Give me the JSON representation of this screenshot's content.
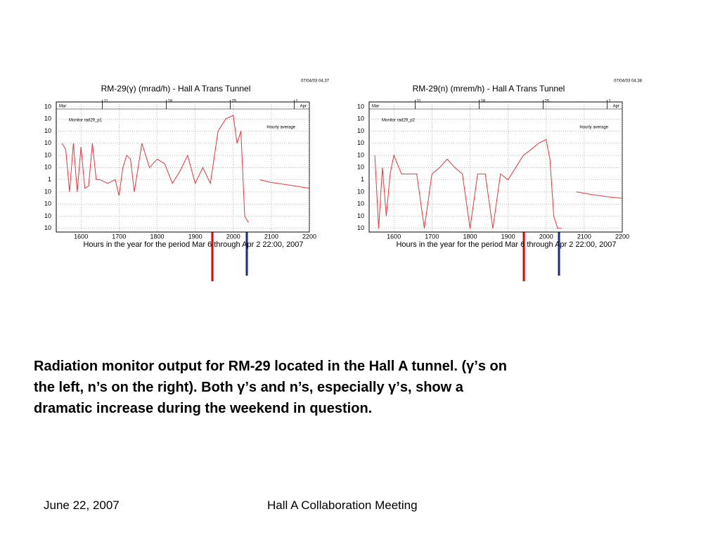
{
  "charts": [
    {
      "type": "line",
      "title": "RM-29(γ) (mrad/h) - Hall A Trans Tunnel",
      "timestamp": "07/04/03   04.37",
      "monitor_label": "Monitor rad29_p1",
      "x_label": "Hours in the year for the period Mar 6   through   Apr 2 22:00, 2007",
      "month_start": "Mar",
      "month_end": "Apr",
      "date_markers": [
        {
          "value": 1656,
          "label": "11"
        },
        {
          "value": 1824,
          "label": "18"
        },
        {
          "value": 1992,
          "label": "25"
        },
        {
          "value": 2160,
          "label": "1"
        }
      ],
      "log_y": true,
      "grid": true,
      "xlim": [
        1535,
        2200
      ],
      "xticks": [
        1600,
        1700,
        1800,
        1900,
        2000,
        2100,
        2200
      ],
      "ylim": [
        5e-05,
        2500000
      ],
      "yticks": [
        {
          "value": 1000000,
          "label": "10"
        },
        {
          "value": 100000,
          "label": "10"
        },
        {
          "value": 10000,
          "label": "10"
        },
        {
          "value": 1000,
          "label": "10"
        },
        {
          "value": 100,
          "label": "10"
        },
        {
          "value": 10,
          "label": "10"
        },
        1,
        {
          "value": 0.1,
          "label": "10"
        },
        {
          "value": 0.01,
          "label": "10"
        },
        {
          "value": 0.001,
          "label": "10"
        },
        {
          "value": 0.0001,
          "label": "10"
        }
      ],
      "series": [
        {
          "name": "Hourly average",
          "color": "#e8000b",
          "x": [
            1550,
            1560,
            1570,
            1580,
            1590,
            1600,
            1610,
            1620,
            1630,
            1640,
            1650,
            1670,
            1690,
            1700,
            1710,
            1720,
            1730,
            1740,
            1750,
            1760,
            1780,
            1800,
            1820,
            1840,
            1860,
            1880,
            1900,
            1920,
            1940,
            1960,
            1980,
            2000,
            2010,
            2020,
            2030,
            2040,
            2050,
            2070,
            2100,
            2150,
            2200
          ],
          "values": [
            1000,
            300,
            0.1,
            1000,
            0.1,
            500,
            0.2,
            0.3,
            1000,
            1,
            1,
            0.5,
            1,
            0.05,
            10,
            100,
            50,
            0.1,
            10,
            1000,
            10,
            50,
            20,
            0.5,
            5,
            100,
            0.5,
            10,
            0.5,
            10000,
            100000,
            200000,
            1000,
            10000,
            0.001,
            0.0003,
            null,
            1,
            0.6,
            0.35,
            0.2
          ]
        }
      ]
    },
    {
      "type": "line",
      "title": "RM-29(n) (mrem/h) - Hall A Trans Tunnel",
      "timestamp": "07/04/03   04.38",
      "monitor_label": "Monitor rad29_p2",
      "x_label": "Hours in the year for the period Mar 6   through   Apr 2 22:00, 2007",
      "month_start": "Mar",
      "month_end": "Apr",
      "date_markers": [
        {
          "value": 1656,
          "label": "11"
        },
        {
          "value": 1824,
          "label": "18"
        },
        {
          "value": 1992,
          "label": "25"
        },
        {
          "value": 2160,
          "label": "1"
        }
      ],
      "log_y": true,
      "grid": true,
      "xlim": [
        1535,
        2200
      ],
      "xticks": [
        1600,
        1700,
        1800,
        1900,
        2000,
        2100,
        2200
      ],
      "ylim": [
        5e-05,
        2500000
      ],
      "yticks": [
        {
          "value": 1000000,
          "label": "10"
        },
        {
          "value": 100000,
          "label": "10"
        },
        {
          "value": 10000,
          "label": "10"
        },
        {
          "value": 1000,
          "label": "10"
        },
        {
          "value": 100,
          "label": "10"
        },
        {
          "value": 10,
          "label": "10"
        },
        1,
        {
          "value": 0.1,
          "label": "10"
        },
        {
          "value": 0.01,
          "label": "10"
        },
        {
          "value": 0.001,
          "label": "10"
        },
        {
          "value": 0.0001,
          "label": "10"
        }
      ],
      "series": [
        {
          "name": "Hourly average",
          "color": "#e8000b",
          "x": [
            1550,
            1560,
            1570,
            1580,
            1590,
            1600,
            1620,
            1640,
            1660,
            1680,
            1700,
            1720,
            1740,
            1760,
            1780,
            1800,
            1820,
            1840,
            1860,
            1880,
            1900,
            1920,
            1940,
            1960,
            1980,
            2000,
            2010,
            2020,
            2030,
            2040,
            2060,
            2080,
            2120,
            2160,
            2200
          ],
          "values": [
            100,
            0.0001,
            10,
            0.001,
            3,
            100,
            3,
            3,
            3,
            0.0001,
            3,
            10,
            50,
            10,
            3,
            0.0001,
            3,
            3,
            0.0001,
            3,
            1,
            10,
            100,
            300,
            1000,
            2000,
            50,
            0.001,
            0.0001,
            0.0001,
            null,
            0.1,
            0.06,
            0.04,
            0.03
          ]
        }
      ]
    }
  ],
  "caption": [
    "Radiation monitor output for RM-29 located in the Hall A tunnel. (γ’s on",
    "the left, n’s on the right). Both γ’s and n’s, especially γ’s, show a",
    "dramatic increase during the weekend in question."
  ],
  "footer": {
    "date": "June 22, 2007",
    "event": "Hall A Collaboration Meeting"
  }
}
